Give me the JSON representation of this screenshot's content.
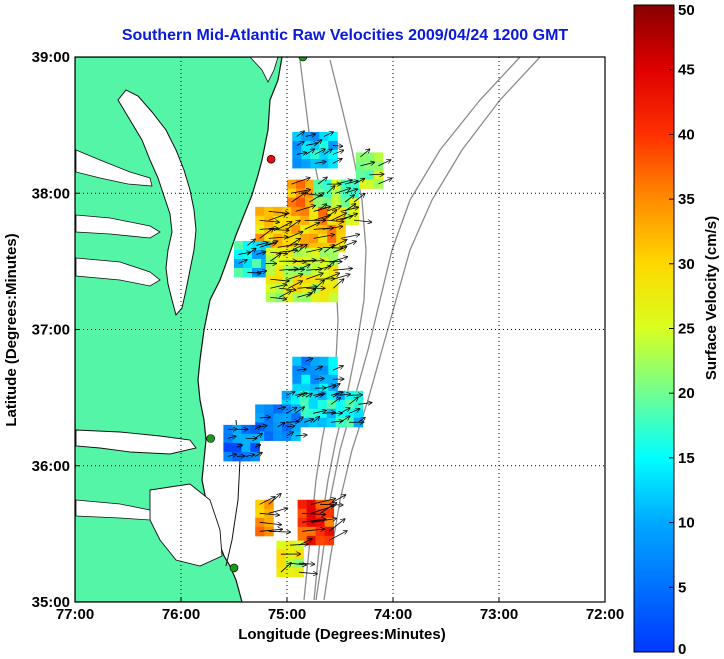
{
  "chart_data": {
    "type": "heatmap",
    "title": "Southern Mid-Atlantic Raw Velocities 2009/04/24 1200 GMT",
    "xlabel": "Longitude (Degrees:Minutes)",
    "ylabel": "Latitude (Degrees:Minutes)",
    "x_ticks": [
      -77,
      -76,
      -75,
      -74,
      -73,
      -72
    ],
    "x_tick_labels": [
      "77:00",
      "76:00",
      "75:00",
      "74:00",
      "73:00",
      "72:00"
    ],
    "y_ticks": [
      35,
      36,
      37,
      38,
      39
    ],
    "y_tick_labels": [
      "35:00",
      "36:00",
      "37:00",
      "38:00",
      "39:00"
    ],
    "xlim": [
      -77,
      -72
    ],
    "ylim": [
      35,
      39
    ],
    "grid": true,
    "colorbar": {
      "label": "Surface Velocity (cm/s)",
      "range": [
        0,
        50
      ],
      "ticks": [
        0,
        5,
        10,
        15,
        20,
        25,
        30,
        35,
        40,
        45,
        50
      ],
      "tick_labels": [
        "0",
        "5",
        "10",
        "15",
        "20",
        "25",
        "30",
        "35",
        "40",
        "45",
        "50"
      ]
    },
    "land_color": "#55f5a8",
    "coast_color": "#111111",
    "bathymetry_color": "#8c8c8c",
    "patches": [
      {
        "lon": [
          -74.95,
          -74.6
        ],
        "lat": [
          38.45,
          38.2
        ],
        "speed": 12
      },
      {
        "lon": [
          -74.35,
          -74.1
        ],
        "lat": [
          38.3,
          38.1
        ],
        "speed": 22
      },
      {
        "lon": [
          -75.0,
          -74.8
        ],
        "lat": [
          38.1,
          37.9
        ],
        "speed": 35
      },
      {
        "lon": [
          -74.75,
          -74.35
        ],
        "lat": [
          38.1,
          37.8
        ],
        "speed": 22
      },
      {
        "lon": [
          -75.3,
          -74.5
        ],
        "lat": [
          37.9,
          37.6
        ],
        "speed": 32
      },
      {
        "lon": [
          -75.5,
          -75.2
        ],
        "lat": [
          37.65,
          37.4
        ],
        "speed": 14
      },
      {
        "lon": [
          -75.2,
          -74.6
        ],
        "lat": [
          37.6,
          37.25
        ],
        "speed": 26
      },
      {
        "lon": [
          -74.95,
          -74.6
        ],
        "lat": [
          36.8,
          36.5
        ],
        "speed": 10
      },
      {
        "lon": [
          -75.05,
          -74.35
        ],
        "lat": [
          36.55,
          36.3
        ],
        "speed": 14
      },
      {
        "lon": [
          -75.3,
          -74.9
        ],
        "lat": [
          36.45,
          36.2
        ],
        "speed": 8
      },
      {
        "lon": [
          -75.6,
          -75.3
        ],
        "lat": [
          36.3,
          36.05
        ],
        "speed": 6
      },
      {
        "lon": [
          -75.3,
          -75.15
        ],
        "lat": [
          35.75,
          35.55
        ],
        "speed": 33
      },
      {
        "lon": [
          -74.9,
          -74.6
        ],
        "lat": [
          35.75,
          35.45
        ],
        "speed": 40
      },
      {
        "lon": [
          -75.1,
          -74.85
        ],
        "lat": [
          35.45,
          35.25
        ],
        "speed": 26
      }
    ],
    "stations": [
      {
        "lon": -74.85,
        "lat": 39.0,
        "color": "#1a9a1a"
      },
      {
        "lon": -75.15,
        "lat": 38.25,
        "color": "#e01010"
      },
      {
        "lon": -75.72,
        "lat": 36.2,
        "color": "#1a9a1a"
      },
      {
        "lon": -75.5,
        "lat": 35.25,
        "color": "#1a9a1a"
      }
    ]
  }
}
